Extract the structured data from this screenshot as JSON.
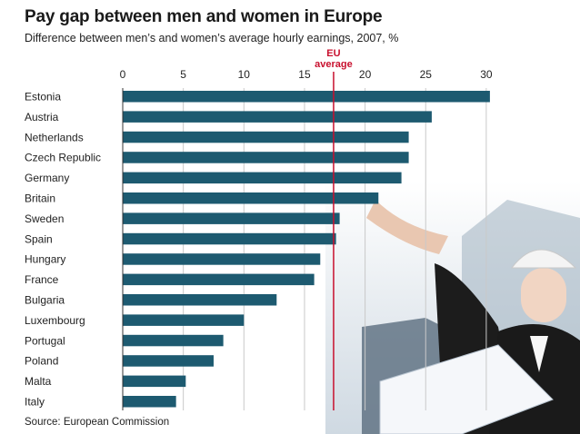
{
  "title": "Pay gap between men and women in Europe",
  "subtitle": "Difference between men’s and women’s average hourly earnings, 2007, %",
  "source": "Source: European Commission",
  "colors": {
    "bar": "#1d5a70",
    "eu_line": "#c8102e",
    "grid": "#c9c9c9"
  },
  "chart_data": {
    "type": "bar",
    "orientation": "horizontal",
    "categories": [
      "Estonia",
      "Austria",
      "Netherlands",
      "Czech Republic",
      "Germany",
      "Britain",
      "Sweden",
      "Spain",
      "Hungary",
      "France",
      "Bulgaria",
      "Luxembourg",
      "Portugal",
      "Poland",
      "Malta",
      "Italy"
    ],
    "values": [
      30.3,
      25.5,
      23.6,
      23.6,
      23.0,
      21.1,
      17.9,
      17.6,
      16.3,
      15.8,
      12.7,
      10.0,
      8.3,
      7.5,
      5.2,
      4.4
    ],
    "xlim": [
      0,
      30
    ],
    "ticks": [
      0,
      5,
      10,
      15,
      20,
      25,
      30
    ],
    "grid": true,
    "reference_line": {
      "label": "EU\naverage",
      "value": 17.4
    }
  }
}
